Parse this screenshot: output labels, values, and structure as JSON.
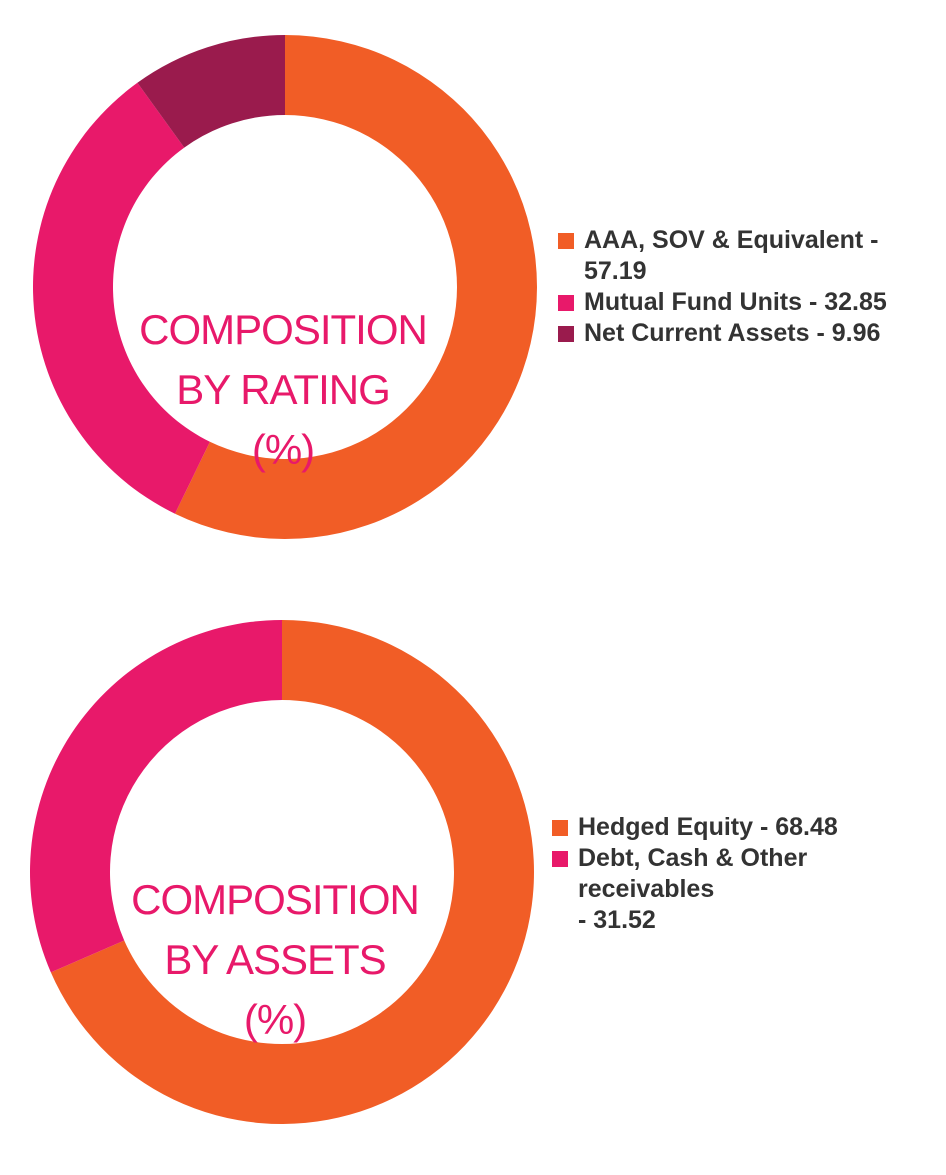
{
  "chart_data": [
    {
      "type": "pie",
      "title": "COMPOSITION BY RATING (%)",
      "title_lines": [
        "COMPOSITION",
        "BY RATING",
        "(%)"
      ],
      "categories": [
        "AAA, SOV & Equivalent",
        "Mutual Fund Units",
        "Net Current Assets"
      ],
      "values": [
        57.19,
        32.85,
        9.96
      ],
      "legend": [
        {
          "line1": "AAA, SOV & Equivalent -",
          "line2": "57.19",
          "color": "#F15D26"
        },
        {
          "line1": "Mutual Fund Units - 32.85",
          "line2": "",
          "color": "#E8196A"
        },
        {
          "line1": "Net Current Assets - 9.96",
          "line2": "",
          "color": "#9A1B4D"
        }
      ],
      "colors": [
        "#F15D26",
        "#E8196A",
        "#9A1B4D"
      ],
      "legend_position": "right",
      "style": "donut"
    },
    {
      "type": "pie",
      "title": "COMPOSITION BY ASSETS (%)",
      "title_lines": [
        "COMPOSITION",
        "BY ASSETS",
        "(%)"
      ],
      "categories": [
        "Hedged Equity",
        "Debt, Cash & Other receivables"
      ],
      "values": [
        68.48,
        31.52
      ],
      "legend": [
        {
          "line1": "Hedged Equity - 68.48",
          "line2": "",
          "color": "#F15D26"
        },
        {
          "line1": "Debt, Cash & Other receivables",
          "line2": "- 31.52",
          "color": "#E8196A"
        }
      ],
      "colors": [
        "#F15D26",
        "#E8196A"
      ],
      "legend_position": "right",
      "style": "donut"
    }
  ]
}
